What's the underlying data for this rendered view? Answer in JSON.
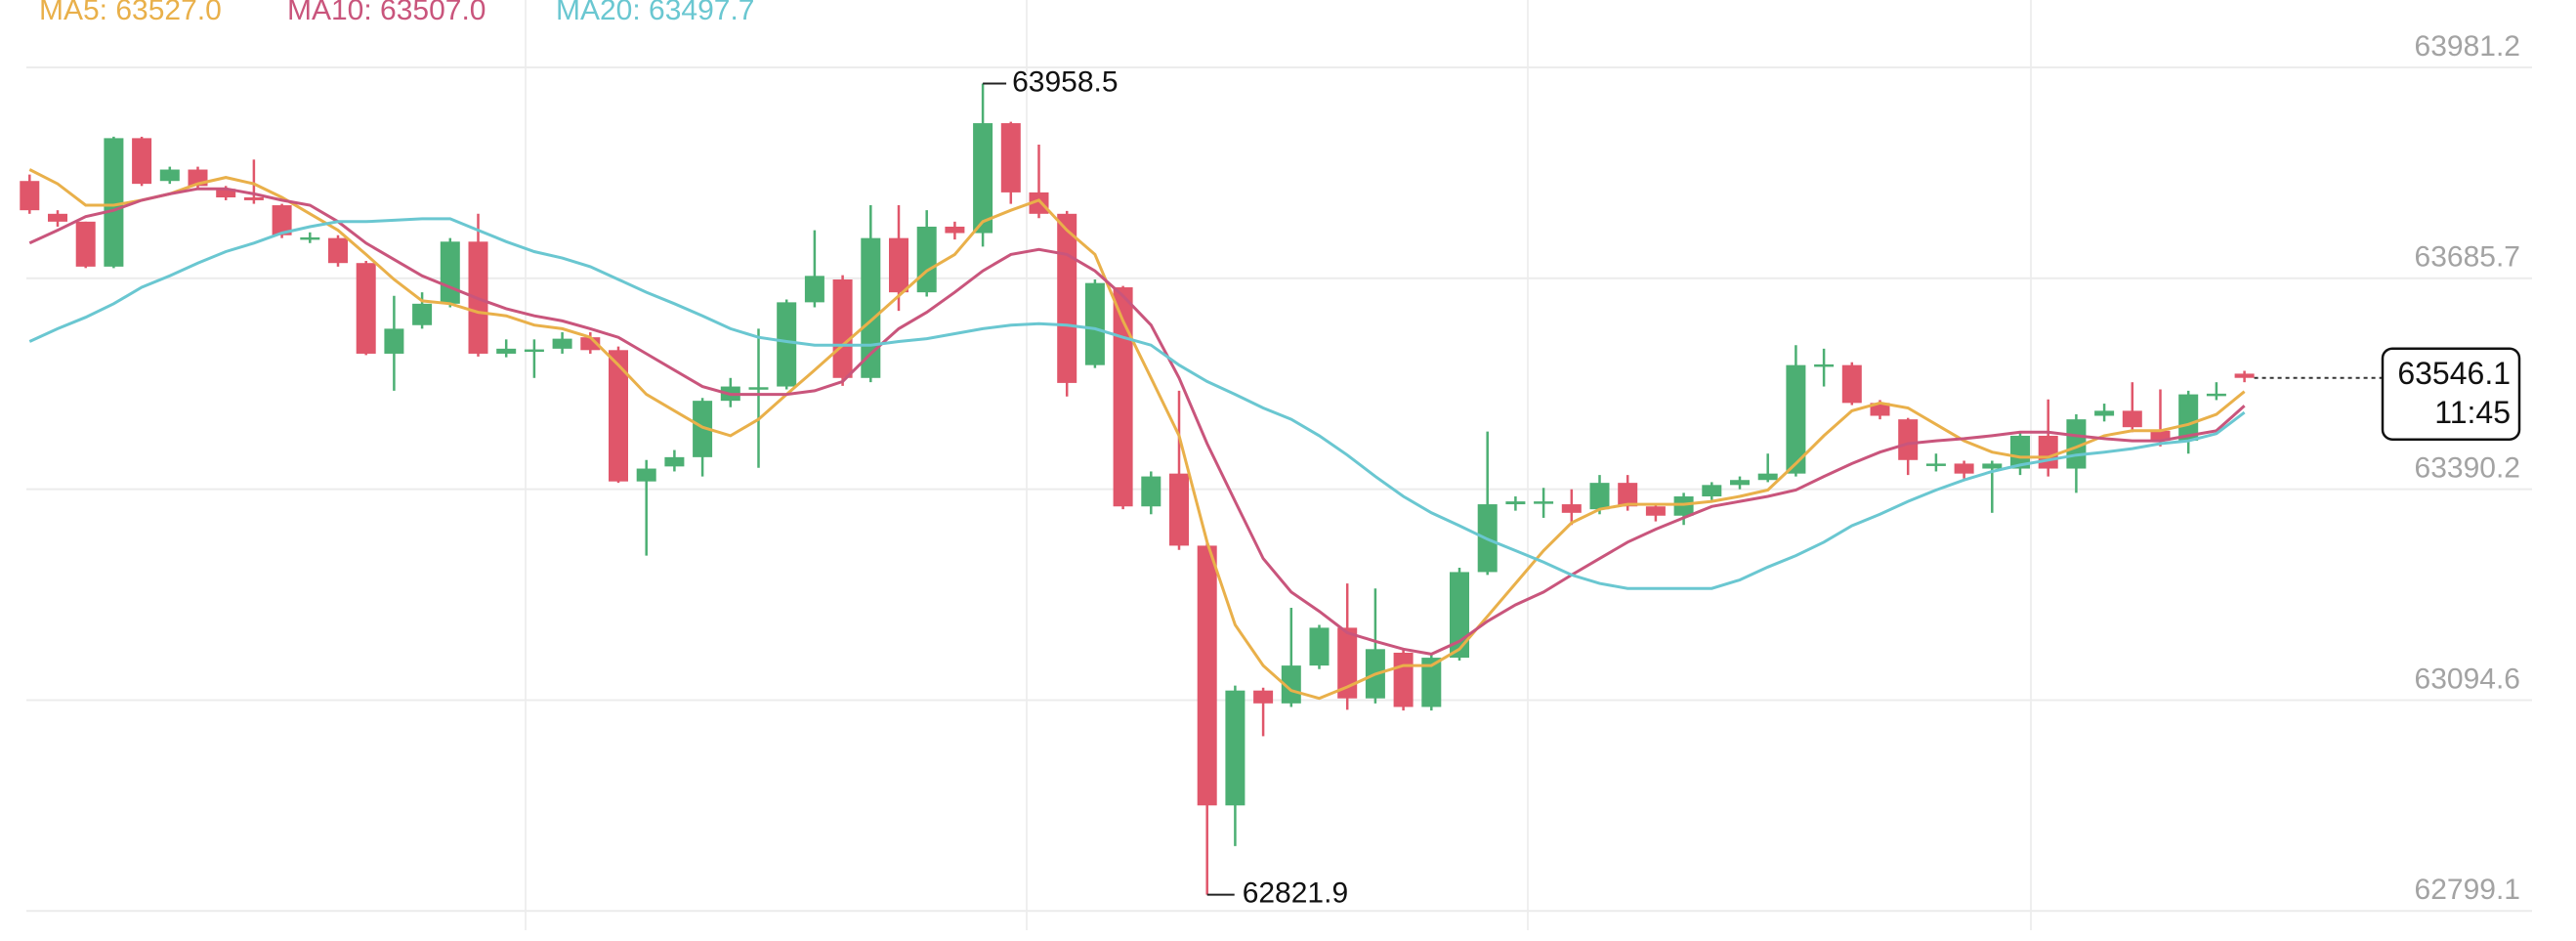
{
  "chart_data": {
    "type": "candlestick",
    "ylim": [
      62772.1,
      64075.6
    ],
    "yticks": [
      63981.2,
      63685.7,
      63390.2,
      63094.6,
      62799.1
    ],
    "grid": true,
    "up_color": "#4caf73",
    "down_color": "#e0566a",
    "countdown": "11:45",
    "open": [
      63822,
      63776,
      63765,
      63702,
      63882,
      63822,
      63838,
      63811,
      63799,
      63788,
      63742,
      63742,
      63707,
      63580,
      63620,
      63650,
      63737,
      63580,
      63585,
      63587,
      63603,
      63585,
      63401,
      63422,
      63435,
      63514,
      63532,
      63534,
      63652,
      63684,
      63546,
      63742,
      63666,
      63758,
      63749,
      63903,
      63806,
      63776,
      63564,
      63673,
      63366,
      63412,
      63311,
      62947,
      63108,
      63090,
      63143,
      63196,
      63097,
      63161,
      63085,
      63154,
      63274,
      63369,
      63373,
      63369,
      63362,
      63399,
      63366,
      63353,
      63380,
      63396,
      63403,
      63412,
      63564,
      63564,
      63511,
      63488,
      63426,
      63426,
      63419,
      63419,
      63465,
      63419,
      63493,
      63500,
      63472,
      63458,
      63523,
      63552
    ],
    "high": [
      63831,
      63781,
      63765,
      63884,
      63884,
      63842,
      63842,
      63815,
      63852,
      63790,
      63750,
      63746,
      63710,
      63661,
      63666,
      63742,
      63776,
      63600,
      63600,
      63610,
      63610,
      63590,
      63431,
      63445,
      63518,
      63546,
      63615,
      63656,
      63753,
      63690,
      63788,
      63788,
      63781,
      63765,
      63958.5,
      63905,
      63873,
      63780,
      63684,
      63675,
      63415,
      63528,
      63315,
      63115,
      63112,
      63224,
      63200,
      63258,
      63251,
      63165,
      63160,
      63280,
      63471,
      63380,
      63392,
      63390,
      63410,
      63410,
      63370,
      63385,
      63400,
      63408,
      63440,
      63592,
      63587,
      63568,
      63515,
      63490,
      63440,
      63430,
      63430,
      63470,
      63516,
      63495,
      63510,
      63540,
      63530,
      63528,
      63540,
      63556
    ],
    "low": [
      63776,
      63758,
      63700,
      63700,
      63815,
      63818,
      63811,
      63795,
      63790,
      63742,
      63735,
      63702,
      63578,
      63528,
      63615,
      63645,
      63576,
      63575,
      63546,
      63580,
      63580,
      63399,
      63297,
      63415,
      63408,
      63505,
      63420,
      63530,
      63645,
      63535,
      63540,
      63640,
      63660,
      63740,
      63730,
      63790,
      63770,
      63520,
      63560,
      63362,
      63355,
      63305,
      62821.9,
      62890,
      63044,
      63085,
      63138,
      63081,
      63090,
      63080,
      63080,
      63150,
      63270,
      63360,
      63350,
      63340,
      63355,
      63360,
      63345,
      63340,
      63375,
      63390,
      63400,
      63408,
      63534,
      63508,
      63488,
      63410,
      63415,
      63405,
      63357,
      63410,
      63408,
      63385,
      63485,
      63470,
      63450,
      63440,
      63515,
      63540
    ],
    "close": [
      63781,
      63765,
      63702,
      63882,
      63818,
      63838,
      63815,
      63799,
      63795,
      63746,
      63743,
      63707,
      63580,
      63615,
      63650,
      63737,
      63580,
      63587,
      63586,
      63601,
      63585,
      63401,
      63419,
      63435,
      63514,
      63534,
      63533,
      63652,
      63689,
      63546,
      63742,
      63666,
      63758,
      63749,
      63903,
      63806,
      63776,
      63539,
      63679,
      63366,
      63408,
      63311,
      62947,
      63108,
      63090,
      63143,
      63196,
      63097,
      63166,
      63085,
      63154,
      63274,
      63369,
      63373,
      63373,
      63357,
      63399,
      63366,
      63353,
      63380,
      63396,
      63403,
      63412,
      63564,
      63565,
      63511,
      63493,
      63431,
      63426,
      63412,
      63426,
      63465,
      63419,
      63488,
      63500,
      63477,
      63458,
      63523,
      63524,
      63546.1
    ],
    "series": [
      {
        "name": "MA5: 63527.0",
        "color": "#e9b04a",
        "values": [
          63838,
          63818,
          63788,
          63788,
          63795,
          63804,
          63818,
          63827,
          63818,
          63799,
          63776,
          63753,
          63719,
          63684,
          63654,
          63650,
          63638,
          63633,
          63620,
          63615,
          63603,
          63564,
          63523,
          63500,
          63477,
          63465,
          63488,
          63523,
          63557,
          63592,
          63626,
          63661,
          63696,
          63719,
          63765,
          63781,
          63795,
          63753,
          63719,
          63626,
          63546,
          63465,
          63316,
          63200,
          63143,
          63108,
          63097,
          63113,
          63131,
          63143,
          63143,
          63166,
          63212,
          63258,
          63304,
          63343,
          63362,
          63369,
          63369,
          63369,
          63373,
          63380,
          63389,
          63426,
          63465,
          63500,
          63511,
          63504,
          63481,
          63458,
          63442,
          63435,
          63435,
          63449,
          63465,
          63472,
          63472,
          63481,
          63495,
          63527.0
        ]
      },
      {
        "name": "MA10: 63507.0",
        "color": "#c9557c",
        "values": [
          63735,
          63753,
          63772,
          63781,
          63795,
          63804,
          63811,
          63811,
          63804,
          63795,
          63788,
          63765,
          63735,
          63712,
          63689,
          63673,
          63657,
          63643,
          63633,
          63626,
          63615,
          63603,
          63580,
          63557,
          63534,
          63523,
          63523,
          63523,
          63528,
          63541,
          63580,
          63615,
          63638,
          63666,
          63696,
          63719,
          63726,
          63719,
          63696,
          63661,
          63620,
          63546,
          63454,
          63373,
          63293,
          63246,
          63219,
          63189,
          63177,
          63166,
          63159,
          63177,
          63205,
          63228,
          63246,
          63270,
          63293,
          63316,
          63334,
          63350,
          63366,
          63373,
          63380,
          63389,
          63408,
          63426,
          63442,
          63454,
          63458,
          63461,
          63465,
          63470,
          63470,
          63465,
          63461,
          63458,
          63458,
          63465,
          63472,
          63507.0
        ]
      },
      {
        "name": "MA20: 63497.7",
        "color": "#6ac7d1",
        "values": [
          63597,
          63615,
          63631,
          63650,
          63673,
          63689,
          63707,
          63723,
          63735,
          63749,
          63758,
          63765,
          63765,
          63767,
          63769,
          63769,
          63753,
          63737,
          63723,
          63714,
          63702,
          63684,
          63666,
          63650,
          63633,
          63615,
          63603,
          63597,
          63592,
          63592,
          63592,
          63597,
          63601,
          63608,
          63615,
          63620,
          63622,
          63620,
          63615,
          63603,
          63592,
          63564,
          63541,
          63523,
          63504,
          63488,
          63465,
          63438,
          63408,
          63380,
          63357,
          63339,
          63320,
          63304,
          63288,
          63270,
          63258,
          63251,
          63251,
          63251,
          63251,
          63263,
          63281,
          63297,
          63316,
          63339,
          63355,
          63373,
          63389,
          63403,
          63415,
          63424,
          63431,
          63438,
          63442,
          63447,
          63454,
          63458,
          63468,
          63497.7
        ]
      }
    ]
  }
}
